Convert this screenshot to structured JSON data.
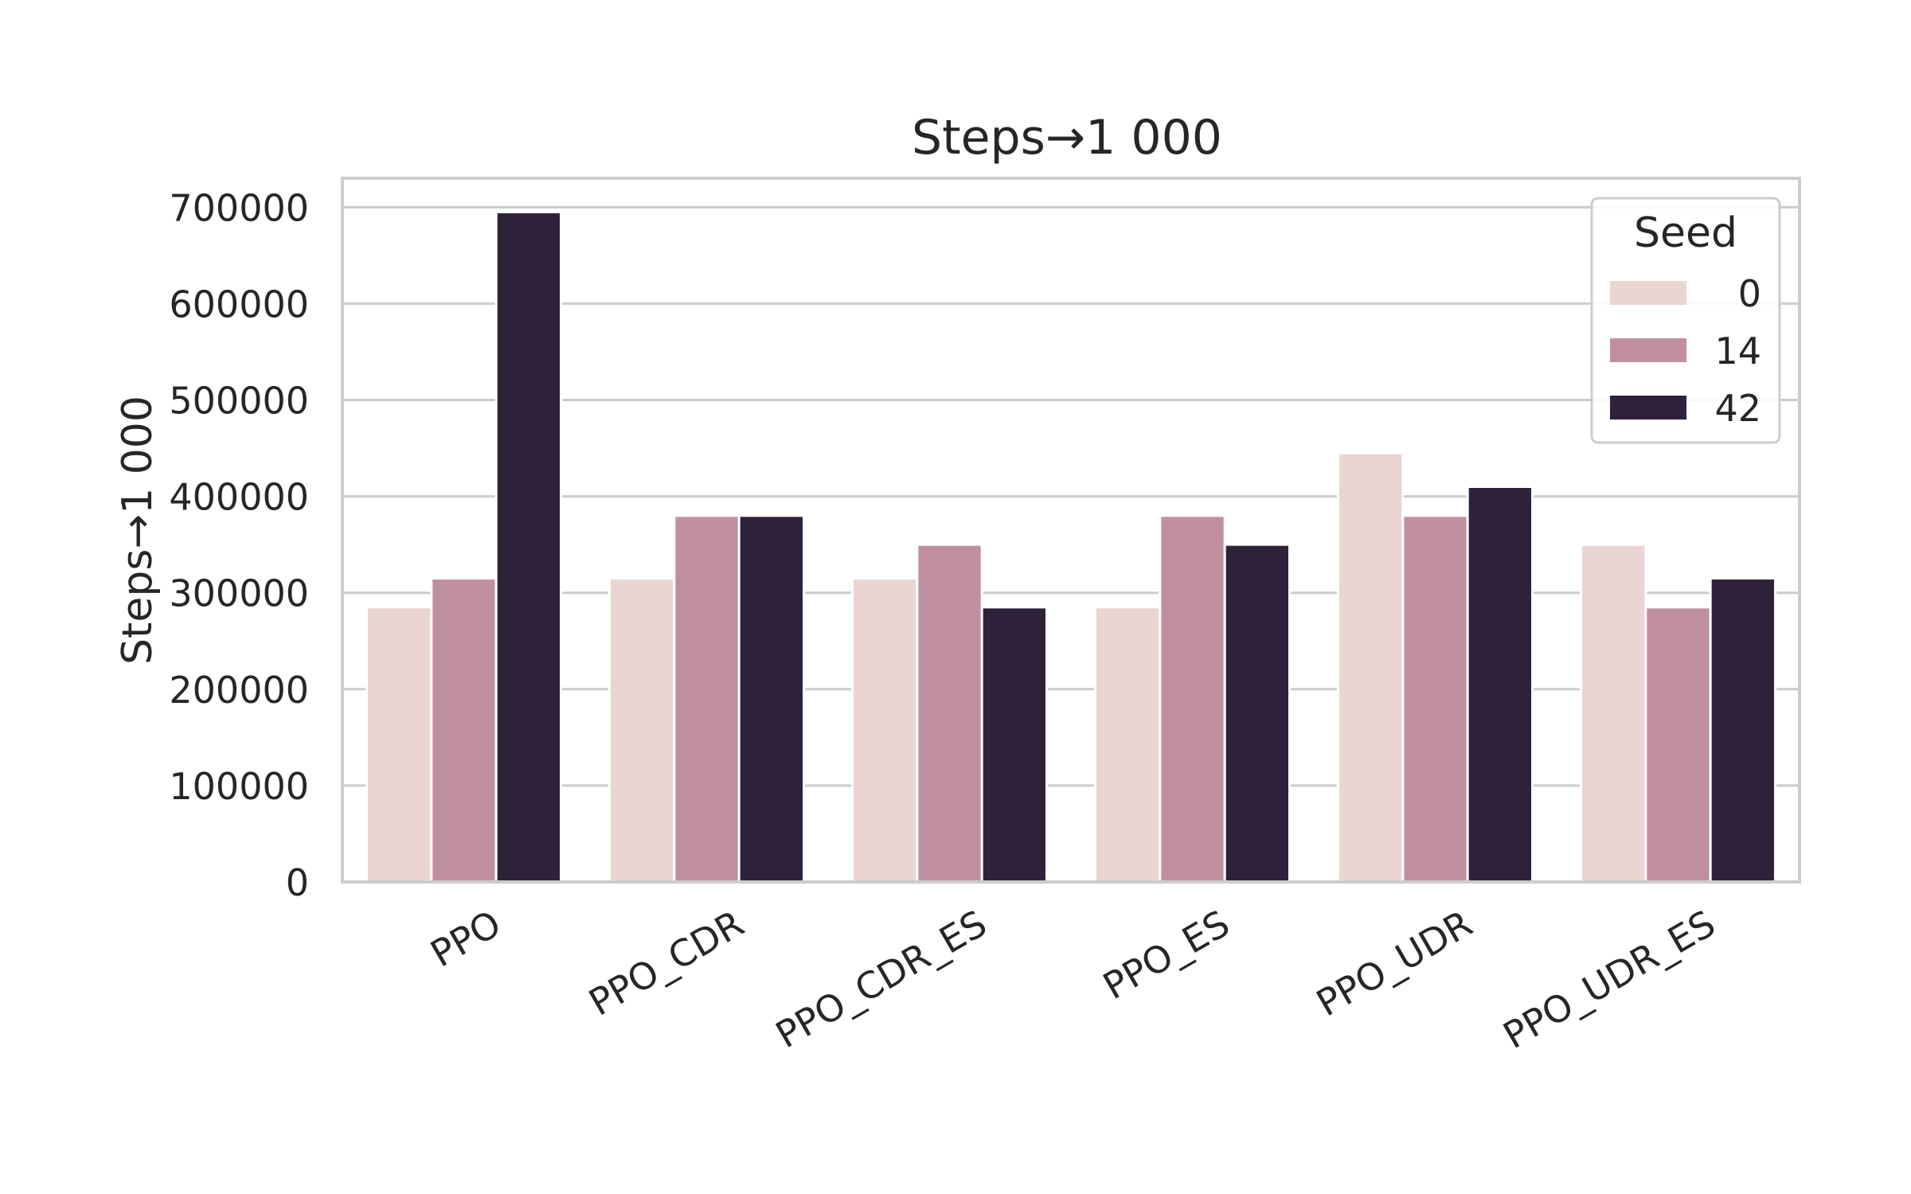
{
  "chart_data": {
    "type": "bar",
    "title": "Steps→1 000",
    "ylabel": "Steps→1 000",
    "xlabel": "",
    "categories": [
      "PPO",
      "PPO_CDR",
      "PPO_CDR_ES",
      "PPO_ES",
      "PPO_UDR",
      "PPO_UDR_ES"
    ],
    "series": [
      {
        "name": "0",
        "color": "#ead5d2",
        "values": [
          285000,
          315000,
          315000,
          285000,
          445000,
          350000
        ]
      },
      {
        "name": "14",
        "color": "#c08f9f",
        "values": [
          315000,
          380000,
          350000,
          380000,
          380000,
          285000
        ]
      },
      {
        "name": "42",
        "color": "#2e223a",
        "values": [
          695000,
          380000,
          285000,
          350000,
          410000,
          315000
        ]
      }
    ],
    "ylim": [
      0,
      730000
    ],
    "yticks": [
      0,
      100000,
      200000,
      300000,
      400000,
      500000,
      600000,
      700000
    ],
    "ytick_labels": [
      "0",
      "100000",
      "200000",
      "300000",
      "400000",
      "500000",
      "600000",
      "700000"
    ],
    "grid": true,
    "legend": {
      "title": "Seed",
      "placement": "top-right"
    }
  }
}
